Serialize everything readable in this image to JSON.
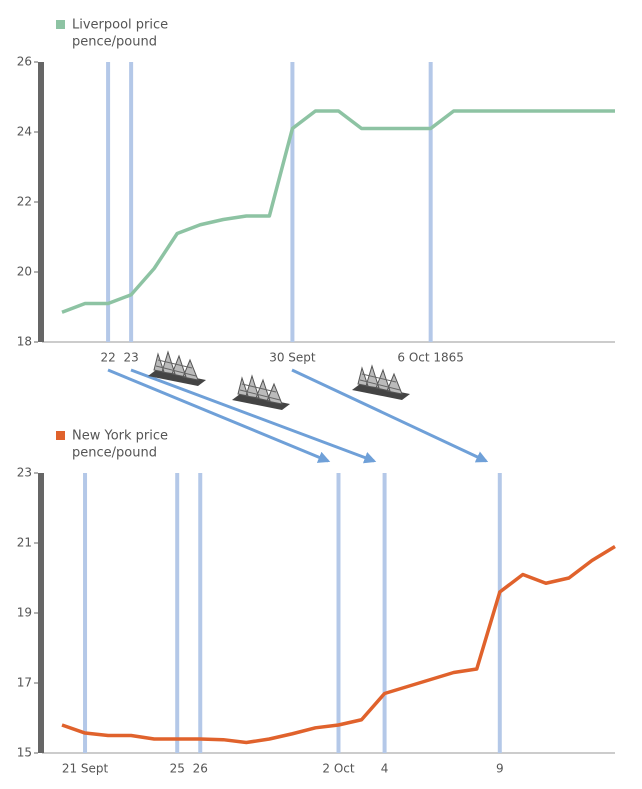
{
  "chart_data": [
    {
      "type": "line",
      "ylabel": "pence/pound",
      "categories": [
        null,
        null,
        "22",
        "23",
        null,
        null,
        null,
        null,
        null,
        null,
        "30 Sept",
        null,
        null,
        null,
        null,
        null,
        "6 Oct 1865",
        null,
        null,
        null,
        null,
        null,
        null,
        null,
        null
      ],
      "series": [
        {
          "name": "Liverpool price",
          "color": "#8dc3a3",
          "values": [
            18.85,
            19.1,
            19.1,
            19.35,
            20.1,
            21.1,
            21.35,
            21.5,
            21.6,
            21.6,
            24.1,
            24.6,
            24.6,
            24.1,
            24.1,
            24.1,
            24.1,
            24.6,
            24.6,
            24.6,
            24.6,
            24.6,
            24.6,
            24.6,
            24.6
          ]
        }
      ],
      "ylim": [
        18,
        26
      ],
      "yticks": [
        18,
        20,
        22,
        24,
        26
      ]
    },
    {
      "type": "line",
      "ylabel": "pence/pound",
      "categories": [
        null,
        "21 Sept",
        null,
        null,
        null,
        "25",
        "26",
        null,
        null,
        null,
        null,
        null,
        "2 Oct",
        null,
        "4",
        null,
        null,
        null,
        null,
        "9",
        null,
        null,
        null,
        null,
        null
      ],
      "series": [
        {
          "name": "New York price",
          "color": "#e0622c",
          "values": [
            15.8,
            15.57,
            15.5,
            15.5,
            15.4,
            15.4,
            15.4,
            15.38,
            15.3,
            15.4,
            15.55,
            15.72,
            15.8,
            15.95,
            16.7,
            16.9,
            17.1,
            17.3,
            17.4,
            19.6,
            20.1,
            19.85,
            20.0,
            20.5,
            20.9
          ]
        }
      ],
      "ylim": [
        15,
        23
      ],
      "yticks": [
        15,
        17,
        19,
        21,
        23
      ]
    }
  ]
}
